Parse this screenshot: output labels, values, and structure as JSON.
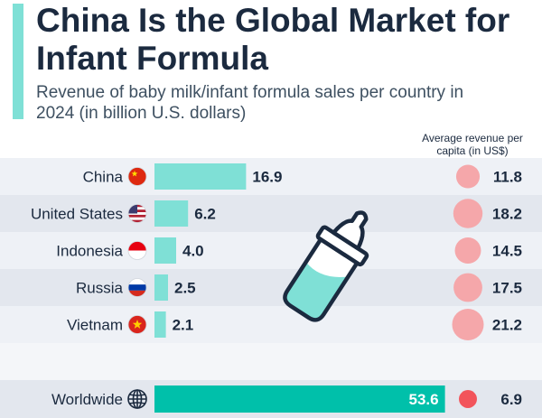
{
  "header": {
    "title": "China Is the Global Market for Infant Formula",
    "subtitle": "Revenue of baby milk/infant formula sales per country in 2024 (in billion U.S. dollars)",
    "avg_label": "Average revenue per capita (in US$)"
  },
  "colors": {
    "accent": "#7fe0d6",
    "bar": "#7fe0d6",
    "worldwide_bar": "#00c0aa",
    "bubble": "#f5a7aa",
    "worldwide_bubble": "#f2545b",
    "text": "#1b2a3f"
  },
  "chart_data": {
    "type": "bar",
    "orientation": "horizontal",
    "categories": [
      "China",
      "United States",
      "Indonesia",
      "Russia",
      "Vietnam"
    ],
    "values": [
      16.9,
      6.2,
      4.0,
      2.5,
      2.1
    ],
    "value_labels": [
      "16.9",
      "6.2",
      "4.0",
      "2.5",
      "2.1"
    ],
    "flags": [
      "flag-china-icon",
      "flag-united-states-icon",
      "flag-indonesia-icon",
      "flag-russia-icon",
      "flag-vietnam-icon"
    ],
    "per_capita": [
      11.8,
      18.2,
      14.5,
      17.5,
      21.2
    ],
    "per_capita_labels": [
      "11.8",
      "18.2",
      "14.5",
      "17.5",
      "21.2"
    ],
    "worldwide": {
      "label": "Worldwide",
      "value": 53.6,
      "value_label": "53.6",
      "per_capita": 6.9,
      "per_capita_label": "6.9",
      "icon": "globe-icon"
    }
  },
  "decoration": {
    "icon": "baby-bottle-icon"
  }
}
